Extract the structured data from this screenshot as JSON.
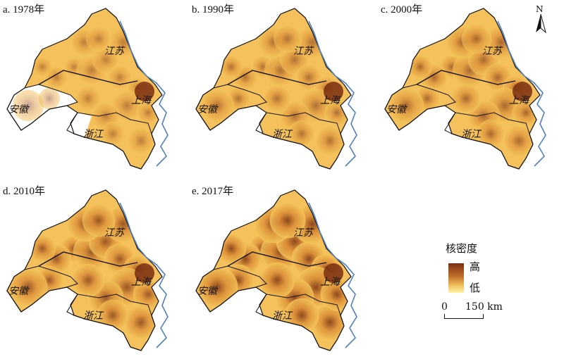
{
  "panels": [
    {
      "label": "a. 1978年",
      "intensity": 0.35,
      "anhui_covered": false
    },
    {
      "label": "b. 1990年",
      "intensity": 0.5,
      "anhui_covered": true
    },
    {
      "label": "c. 2000年",
      "intensity": 0.6,
      "anhui_covered": true
    },
    {
      "label": "d. 2010年",
      "intensity": 0.78,
      "anhui_covered": true
    },
    {
      "label": "e. 2017年",
      "intensity": 0.95,
      "anhui_covered": true
    }
  ],
  "provinces": {
    "jiangsu": "江苏",
    "shanghai": "上海",
    "zhejiang": "浙江",
    "anhui": "安徽"
  },
  "legend": {
    "title": "核密度",
    "high": "高",
    "low": "低",
    "scale_start": "0",
    "scale_end": "150 km"
  },
  "north_label": "N",
  "colors": {
    "low": "#f5c65a",
    "mid": "#d98a34",
    "high": "#7a2e12",
    "sea": "#4f7fbf",
    "border": "#111111"
  }
}
